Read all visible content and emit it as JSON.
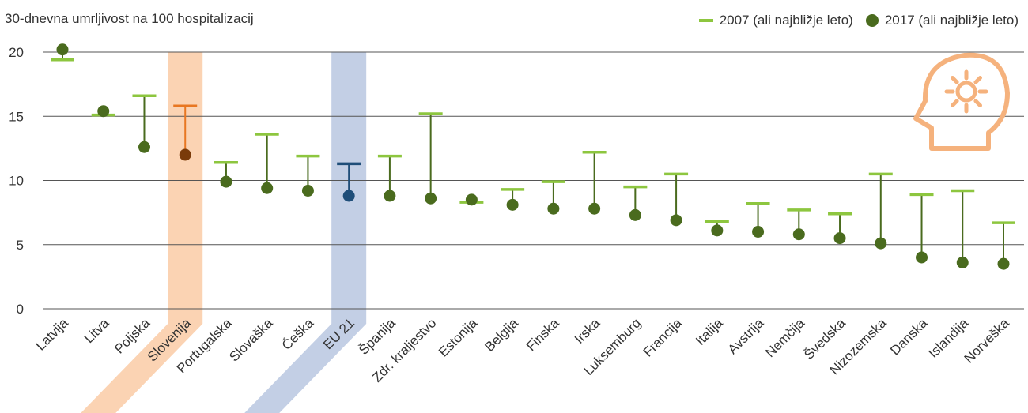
{
  "colors": {
    "line2007": "#8dc63f",
    "dot2017": "#4a6b1e",
    "stem": "#4a6b1e",
    "slovenia_band": "#fbd3b3",
    "slovenia_line": "#e87722",
    "slovenia_dot": "#7a3b0a",
    "eu_band": "#c3cfe5",
    "eu_line": "#1f4e79",
    "eu_dot": "#1f4e79",
    "grid": "#555555",
    "icon": "#f5b27d"
  },
  "icon": "head-with-sun-icon",
  "legend": {
    "item1": "2007 (ali najbližje leto)",
    "item2": "2017 (ali najbližje leto)"
  },
  "chart_data": {
    "type": "dumbbell",
    "ylabel": "30-dnevna umrljivost na 100 hospitalizacij",
    "ylim": [
      0,
      20
    ],
    "yticks": [
      0,
      5,
      10,
      15,
      20
    ],
    "grid": true,
    "legend_position": "top-right",
    "categories": [
      "Latvija",
      "Litva",
      "Poljska",
      "Slovenija",
      "Portugalska",
      "Slovaška",
      "Češka",
      "EU 21",
      "Španija",
      "Zdr. kraljestvo",
      "Estonija",
      "Belgija",
      "Finska",
      "Irska",
      "Luksemburg",
      "Francija",
      "Italija",
      "Avstrija",
      "Nemčija",
      "Švedska",
      "Nizozemska",
      "Danska",
      "Islandija",
      "Norveška"
    ],
    "highlight": {
      "Slovenija": "slovenia",
      "EU 21": "eu"
    },
    "series": [
      {
        "name": "2007 (ali najbližje leto)",
        "values": [
          19.4,
          15.1,
          16.6,
          15.8,
          11.4,
          13.6,
          11.9,
          11.3,
          11.9,
          15.2,
          8.3,
          9.3,
          9.9,
          12.2,
          9.5,
          10.5,
          6.8,
          8.2,
          7.7,
          7.4,
          10.5,
          8.9,
          9.2,
          6.7
        ]
      },
      {
        "name": "2017 (ali najbližje leto)",
        "values": [
          20.2,
          15.4,
          12.6,
          12.0,
          9.9,
          9.4,
          9.2,
          8.8,
          8.8,
          8.6,
          8.5,
          8.1,
          7.8,
          7.8,
          7.3,
          6.9,
          6.1,
          6.0,
          5.8,
          5.5,
          5.1,
          4.0,
          3.6,
          3.5
        ]
      }
    ]
  }
}
